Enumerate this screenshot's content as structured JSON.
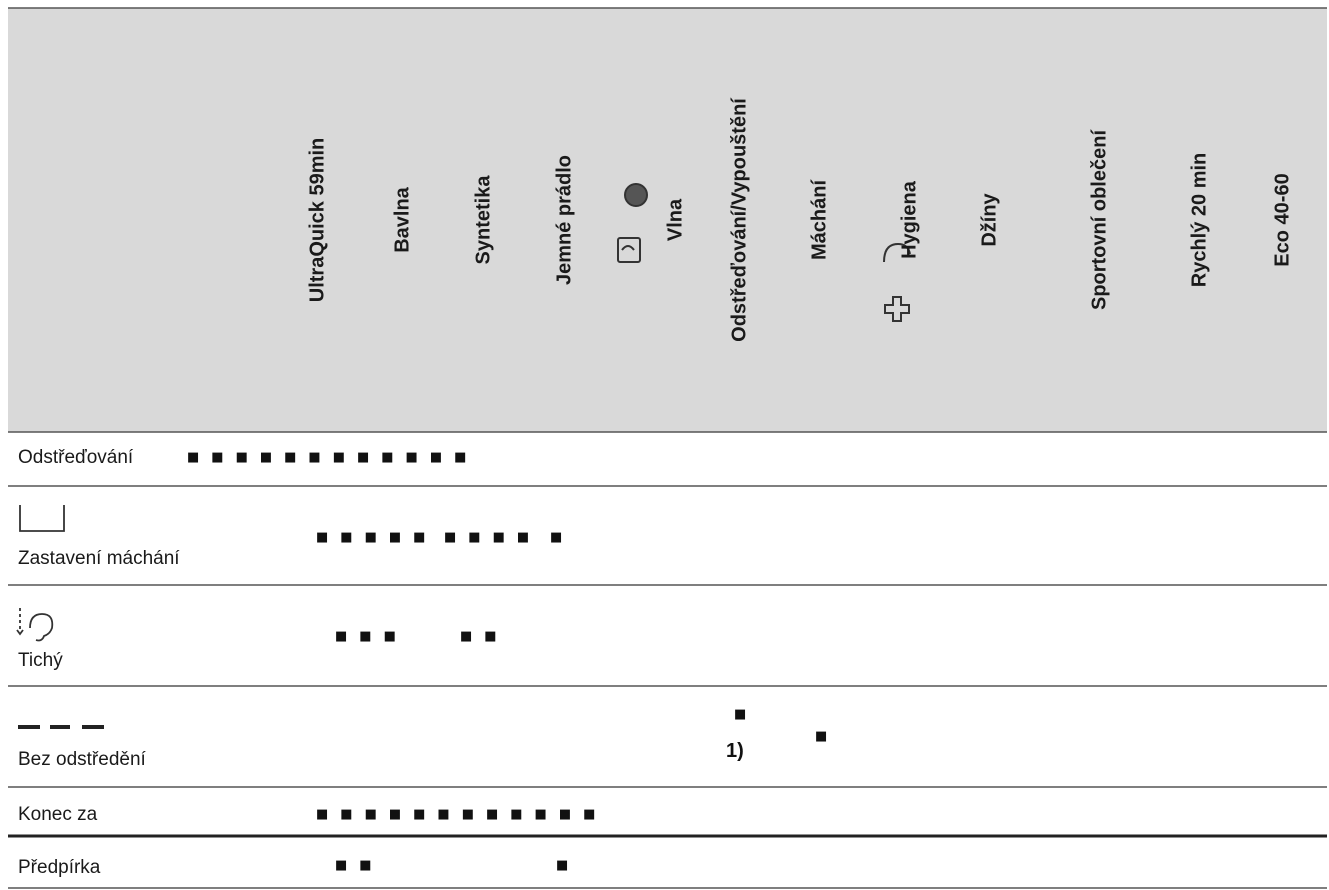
{
  "table": {
    "columns": [
      "UltraQuick 59min",
      "Bavlna",
      "Syntetika",
      "Jemné prádlo",
      "Vlna",
      "Odstřeďování/Vypouštění",
      "Máchání",
      "Hygiena",
      "Džíny",
      "Sportovní oblečení",
      "Rychlý 20 min",
      "Eco 40-60"
    ],
    "rows": [
      {
        "label": "Odstřeďování",
        "marks": [
          "■■■■■■■■■■■■"
        ]
      },
      {
        "label": "Zastavení máchání",
        "marks": [
          "■■■■■",
          "■■■■",
          "■"
        ]
      },
      {
        "label": "Tichý",
        "marks": [
          "■■■",
          "■■"
        ]
      },
      {
        "label": "Bez odstředění",
        "marks": [
          "■",
          "1)",
          "■"
        ]
      },
      {
        "label": "Konec za",
        "marks": [
          "■■■■■■■■■■■■"
        ]
      },
      {
        "label": "Předpírka",
        "marks": [
          "■■",
          "■"
        ]
      }
    ]
  }
}
